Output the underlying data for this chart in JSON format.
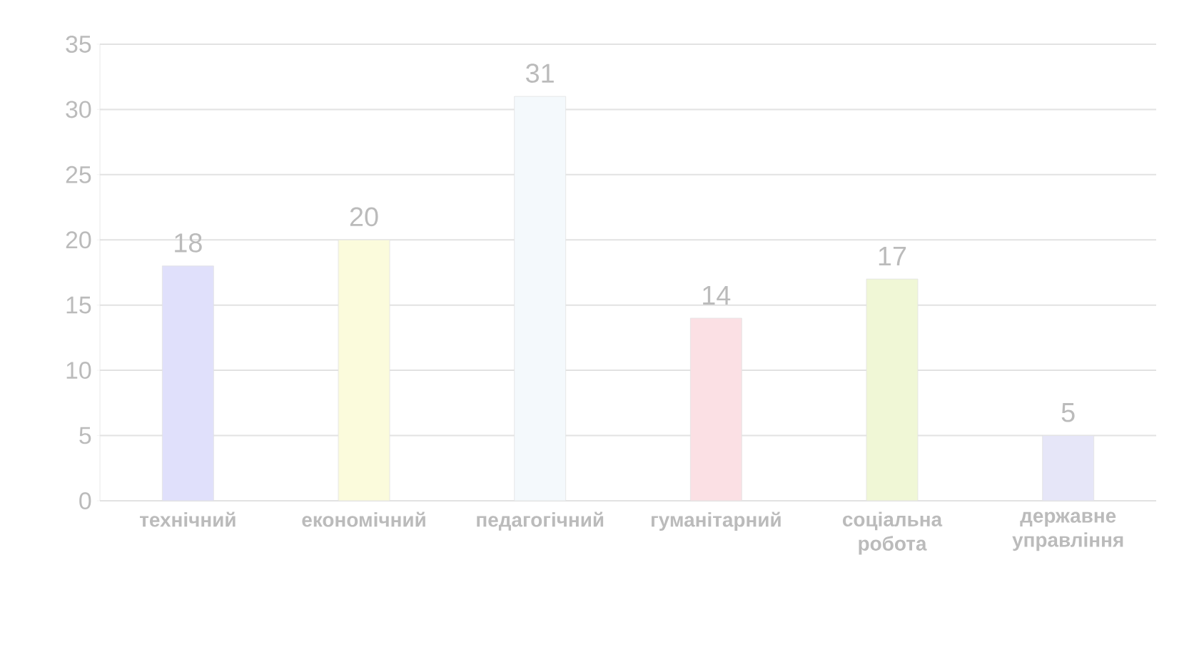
{
  "chart_data": {
    "type": "bar",
    "categories": [
      "технічний",
      "економічний",
      "педагогічний",
      "гуманітарний",
      "соціальна робота",
      "державне управління"
    ],
    "values": [
      18,
      20,
      31,
      14,
      17,
      5
    ],
    "colors": [
      "#e0e0fb",
      "#fbfbdc",
      "#f4f9fc",
      "#fbe0e4",
      "#f0f7d6",
      "#e6e6f8"
    ],
    "ylim": [
      0,
      35
    ],
    "yticks": [
      0,
      5,
      10,
      15,
      20,
      25,
      30,
      35
    ],
    "grid": "y",
    "data_labels": true
  }
}
